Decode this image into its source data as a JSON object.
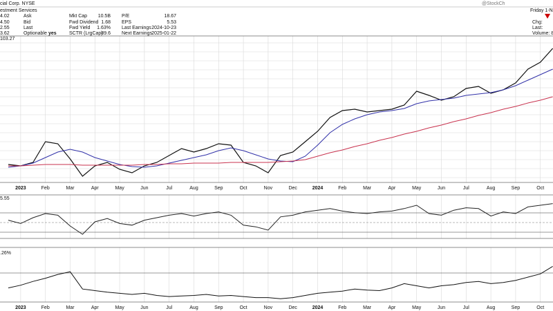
{
  "header": {
    "title": "cial Corp. NYSE",
    "subtitle": "estment Services",
    "watermark": "@StockCh",
    "date": "Friday 1-N",
    "quote": [
      [
        "4.02",
        "Ask"
      ],
      [
        "4.50",
        "Bid"
      ],
      [
        "2.55",
        "Last"
      ],
      [
        "3.62",
        "Optionable",
        "yes"
      ]
    ],
    "stats1": [
      [
        "Mkt Cap",
        "10.5B"
      ],
      [
        "Fwd Dividend",
        "1.68"
      ],
      [
        "Fwd Yield",
        "1.63%"
      ],
      [
        "SCTR (LrgCap)",
        "89.6"
      ]
    ],
    "stats2": [
      [
        "P/E",
        "18.67"
      ],
      [
        "EPS",
        "5.53"
      ],
      [
        "Last Earnings",
        "2024-10-23"
      ],
      [
        "Next Earnings",
        "2025-01-22"
      ]
    ],
    "right": [
      "Chg:",
      "Last:",
      "Volume: 8"
    ]
  },
  "chart_data": [
    {
      "type": "line",
      "label": "103.27",
      "ylim": [
        40,
        102.1
      ],
      "categories": [
        null,
        "2023",
        null,
        "Feb",
        null,
        "Mar",
        null,
        "Apr",
        null,
        "May",
        null,
        "Jun",
        null,
        "Jul",
        null,
        "Aug",
        null,
        "Sep",
        null,
        "Oct",
        null,
        "Nov",
        null,
        "Dec",
        null,
        "2024",
        null,
        "Feb",
        null,
        "Mar",
        null,
        "Apr",
        null,
        "May",
        null,
        "Jun",
        null,
        "Jul",
        null,
        "Aug",
        null,
        "Sep",
        null,
        "Oct",
        null
      ],
      "series": [
        {
          "color": "#111111",
          "values": [
            47.2,
            46.6,
            48.1,
            57.1,
            56.2,
            49.6,
            42.1,
            46.6,
            48.1,
            45.1,
            43.6,
            46.6,
            48.1,
            51.1,
            54.1,
            52.6,
            54.1,
            56.2,
            55.6,
            48.1,
            46.6,
            43.6,
            51.1,
            52.6,
            57.1,
            61.6,
            67.6,
            70.6,
            71.2,
            70.0,
            70.6,
            71.2,
            73.0,
            79.0,
            77.2,
            75.1,
            76.6,
            80.2,
            81.1,
            78.1,
            79.6,
            82.6,
            88.6,
            91.6,
            97.6
          ]
        },
        {
          "color": "#3030a8",
          "values": [
            46.0,
            46.6,
            47.8,
            50.2,
            52.6,
            53.8,
            52.6,
            50.2,
            48.7,
            47.2,
            46.3,
            46.0,
            46.6,
            47.8,
            49.0,
            50.2,
            51.4,
            53.2,
            54.4,
            53.2,
            51.4,
            49.6,
            48.7,
            48.4,
            50.8,
            55.6,
            61.0,
            64.6,
            67.0,
            68.8,
            70.0,
            70.6,
            71.5,
            73.6,
            74.8,
            75.4,
            76.0,
            77.2,
            77.8,
            78.4,
            79.6,
            81.4,
            83.8,
            86.2,
            88.6
          ]
        },
        {
          "color": "#c8324e",
          "values": [
            46.6,
            46.6,
            46.9,
            47.2,
            47.2,
            47.2,
            46.9,
            46.9,
            46.9,
            46.9,
            46.9,
            47.2,
            47.2,
            47.5,
            47.5,
            47.8,
            47.8,
            47.8,
            48.1,
            48.1,
            48.1,
            48.1,
            48.4,
            48.7,
            49.3,
            50.8,
            52.3,
            53.5,
            55.0,
            56.2,
            57.7,
            58.9,
            60.4,
            61.6,
            63.1,
            64.3,
            65.8,
            67.0,
            68.5,
            69.7,
            71.2,
            72.4,
            73.9,
            75.1,
            76.6
          ]
        }
      ]
    },
    {
      "type": "line",
      "label": "5.55",
      "ylim": [
        30,
        80
      ],
      "series": [
        {
          "color": "#222222",
          "values": [
            52,
            48,
            55,
            60,
            58,
            45,
            35,
            50,
            54,
            48,
            46,
            52,
            55,
            58,
            60,
            57,
            60,
            62,
            58,
            46,
            44,
            40,
            56,
            58,
            62,
            64,
            66,
            63,
            61,
            60,
            62,
            63,
            66,
            70,
            60,
            58,
            64,
            67,
            66,
            57,
            62,
            60,
            68,
            70,
            72
          ]
        }
      ]
    },
    {
      "type": "line",
      "label": ".26%",
      "ylim": [
        0,
        100
      ],
      "categories": [
        null,
        "2023",
        null,
        "Feb",
        null,
        "Mar",
        null,
        "Apr",
        null,
        "May",
        null,
        "Jun",
        null,
        "Jul",
        null,
        "Aug",
        null,
        "Sep",
        null,
        "Oct",
        null,
        "Nov",
        null,
        "Dec",
        null,
        "2024",
        null,
        "Feb",
        null,
        "Mar",
        null,
        "Apr",
        null,
        "May",
        null,
        "Jun",
        null,
        "Jul",
        null,
        "Aug",
        null,
        "Sep",
        null,
        "Oct",
        null
      ],
      "series": [
        {
          "color": "#111111",
          "values": [
            30,
            35,
            42,
            48,
            55,
            60,
            28,
            25,
            22,
            20,
            18,
            20,
            16,
            14,
            15,
            16,
            18,
            15,
            16,
            14,
            12,
            12,
            10,
            12,
            16,
            20,
            22,
            24,
            28,
            26,
            25,
            30,
            38,
            34,
            30,
            34,
            36,
            40,
            42,
            38,
            40,
            44,
            50,
            56,
            70
          ]
        }
      ]
    }
  ]
}
